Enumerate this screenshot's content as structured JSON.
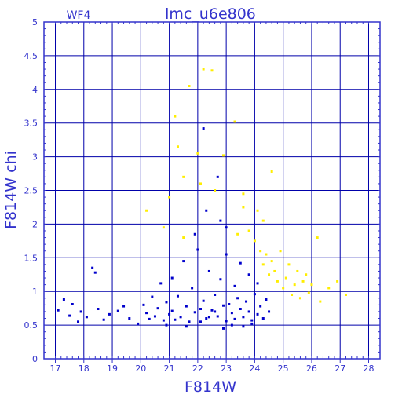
{
  "chart_data": {
    "type": "scatter",
    "title": "lmc_u6e806",
    "subtitle": "WF4",
    "xlabel": "F814W",
    "ylabel": "F814W  chi",
    "xlim": [
      16.6,
      28.4
    ],
    "ylim": [
      0,
      5
    ],
    "x_ticks": [
      "17",
      "18",
      "19",
      "20",
      "21",
      "22",
      "23",
      "24",
      "25",
      "26",
      "27",
      "28"
    ],
    "y_ticks": [
      "0",
      "0.5",
      "1",
      "1.5",
      "2",
      "2.5",
      "3",
      "3.5",
      "4",
      "4.5",
      "5"
    ],
    "grid": true,
    "colors": {
      "axis": "#3333cc",
      "grid": "#0000aa",
      "blue_points": "#0000cc",
      "yellow_points": "#ffee00"
    },
    "series": [
      {
        "color": "blue",
        "points": [
          [
            17.1,
            0.72
          ],
          [
            17.3,
            0.88
          ],
          [
            17.5,
            0.64
          ],
          [
            17.6,
            0.81
          ],
          [
            17.8,
            0.55
          ],
          [
            17.9,
            0.7
          ],
          [
            18.1,
            0.62
          ],
          [
            18.3,
            1.35
          ],
          [
            18.4,
            1.28
          ],
          [
            18.5,
            0.74
          ],
          [
            18.7,
            0.58
          ],
          [
            18.9,
            0.66
          ],
          [
            19.2,
            0.71
          ],
          [
            19.4,
            0.78
          ],
          [
            19.6,
            0.6
          ],
          [
            19.9,
            0.52
          ],
          [
            20.1,
            0.8
          ],
          [
            20.2,
            0.68
          ],
          [
            20.3,
            0.59
          ],
          [
            20.4,
            0.92
          ],
          [
            20.5,
            0.63
          ],
          [
            20.6,
            0.75
          ],
          [
            20.7,
            1.12
          ],
          [
            20.8,
            0.57
          ],
          [
            20.9,
            0.84
          ],
          [
            21.0,
            0.66
          ],
          [
            21.1,
            1.2
          ],
          [
            21.1,
            0.71
          ],
          [
            21.2,
            0.58
          ],
          [
            21.3,
            0.93
          ],
          [
            21.4,
            0.62
          ],
          [
            21.5,
            1.45
          ],
          [
            21.6,
            0.78
          ],
          [
            21.7,
            0.55
          ],
          [
            21.8,
            1.05
          ],
          [
            21.9,
            0.69
          ],
          [
            22.0,
            1.62
          ],
          [
            22.1,
            0.74
          ],
          [
            22.2,
            0.86
          ],
          [
            22.2,
            3.42
          ],
          [
            22.3,
            0.6
          ],
          [
            22.4,
            1.3
          ],
          [
            22.5,
            0.72
          ],
          [
            22.6,
            0.95
          ],
          [
            22.7,
            2.7
          ],
          [
            22.7,
            0.63
          ],
          [
            22.8,
            1.18
          ],
          [
            22.9,
            0.79
          ],
          [
            23.0,
            0.56
          ],
          [
            23.0,
            1.55
          ],
          [
            23.1,
            0.81
          ],
          [
            23.2,
            0.68
          ],
          [
            23.3,
            1.08
          ],
          [
            23.3,
            0.59
          ],
          [
            23.4,
            0.9
          ],
          [
            23.5,
            0.74
          ],
          [
            23.5,
            1.42
          ],
          [
            23.6,
            0.62
          ],
          [
            23.7,
            0.85
          ],
          [
            23.8,
            0.7
          ],
          [
            23.8,
            1.25
          ],
          [
            23.9,
            0.57
          ],
          [
            24.0,
            0.96
          ],
          [
            24.1,
            0.66
          ],
          [
            24.1,
            1.12
          ],
          [
            24.2,
            0.78
          ],
          [
            24.3,
            0.6
          ],
          [
            24.4,
            0.88
          ],
          [
            24.5,
            0.7
          ],
          [
            22.1,
            0.55
          ],
          [
            22.4,
            0.62
          ],
          [
            22.6,
            0.7
          ],
          [
            23.2,
            0.5
          ],
          [
            23.6,
            0.48
          ],
          [
            23.9,
            0.52
          ],
          [
            22.9,
            0.45
          ],
          [
            21.6,
            0.48
          ],
          [
            20.9,
            0.5
          ],
          [
            22.3,
            2.2
          ],
          [
            22.8,
            2.05
          ],
          [
            23.0,
            1.95
          ],
          [
            21.9,
            1.85
          ]
        ]
      },
      {
        "color": "yellow",
        "points": [
          [
            20.2,
            2.2
          ],
          [
            21.0,
            2.4
          ],
          [
            21.3,
            3.15
          ],
          [
            21.5,
            2.7
          ],
          [
            21.7,
            4.05
          ],
          [
            21.2,
            3.6
          ],
          [
            22.0,
            3.05
          ],
          [
            22.2,
            4.3
          ],
          [
            22.5,
            4.28
          ],
          [
            22.9,
            3.02
          ],
          [
            23.3,
            3.52
          ],
          [
            23.6,
            2.45
          ],
          [
            23.8,
            1.9
          ],
          [
            24.0,
            1.75
          ],
          [
            24.2,
            1.6
          ],
          [
            24.3,
            1.4
          ],
          [
            24.4,
            1.55
          ],
          [
            24.5,
            1.25
          ],
          [
            24.6,
            1.45
          ],
          [
            24.7,
            1.3
          ],
          [
            24.8,
            1.15
          ],
          [
            24.9,
            1.6
          ],
          [
            25.0,
            1.05
          ],
          [
            25.1,
            1.2
          ],
          [
            25.2,
            1.4
          ],
          [
            25.3,
            0.95
          ],
          [
            25.4,
            1.1
          ],
          [
            25.5,
            1.3
          ],
          [
            25.6,
            0.9
          ],
          [
            25.7,
            1.15
          ],
          [
            25.8,
            1.25
          ],
          [
            25.9,
            0.98
          ],
          [
            26.0,
            1.1
          ],
          [
            26.2,
            1.8
          ],
          [
            26.3,
            0.85
          ],
          [
            26.6,
            1.05
          ],
          [
            26.9,
            1.15
          ],
          [
            27.2,
            0.95
          ],
          [
            24.1,
            2.2
          ],
          [
            24.3,
            2.05
          ],
          [
            24.6,
            2.78
          ],
          [
            23.6,
            2.25
          ],
          [
            23.4,
            1.85
          ],
          [
            22.6,
            2.5
          ],
          [
            22.1,
            2.6
          ],
          [
            20.8,
            1.95
          ],
          [
            21.5,
            1.8
          ]
        ]
      }
    ]
  }
}
